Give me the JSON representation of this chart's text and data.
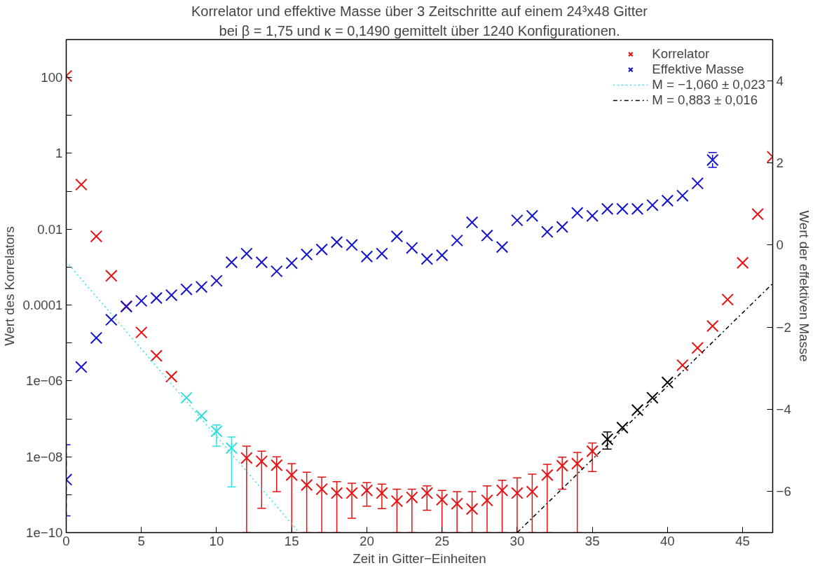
{
  "chart_data": {
    "type": "scatter",
    "title": "Korrelator und effektive Masse über 3 Zeitschritte auf einem 24³x48 Gitter",
    "subtitle": "bei β = 1,75 und κ = 0,1490 gemittelt über 1240 Konfigurationen.",
    "xlabel": "Zeit in Gitter−Einheiten",
    "ylabel": "Wert des Korrelators",
    "y2label": "Wert der effektiven Masse",
    "log": "y",
    "grid": false,
    "legend": "top right",
    "marker": "cross",
    "xlim": [
      0,
      47
    ],
    "xticks": [
      0,
      5,
      10,
      15,
      20,
      25,
      30,
      35,
      40,
      45
    ],
    "ylim": [
      1e-10,
      1000
    ],
    "yticks": [
      {
        "value": 1e-10,
        "label": "1e−10"
      },
      {
        "value": 1e-09,
        "label": null
      },
      {
        "value": 1e-08,
        "label": "1e−08"
      },
      {
        "value": 1e-07,
        "label": null
      },
      {
        "value": 1e-06,
        "label": "1e−06"
      },
      {
        "value": 1e-05,
        "label": null
      },
      {
        "value": 0.0001,
        "label": "0.0001"
      },
      {
        "value": 0.001,
        "label": null
      },
      {
        "value": 0.01,
        "label": "0.01"
      },
      {
        "value": 0.1,
        "label": null
      },
      {
        "value": 1,
        "label": "1"
      },
      {
        "value": 10,
        "label": null
      },
      {
        "value": 100,
        "label": "100"
      }
    ],
    "y2lim": [
      -7,
      5
    ],
    "y2ticks": [
      {
        "value": -6,
        "label": "−6"
      },
      {
        "value": -4,
        "label": "−4"
      },
      {
        "value": -2,
        "label": "−2"
      },
      0,
      2,
      4
    ],
    "x": [
      0,
      1,
      2,
      3,
      4,
      5,
      6,
      7,
      8,
      9,
      10,
      11,
      12,
      13,
      14,
      15,
      16,
      17,
      18,
      19,
      20,
      21,
      22,
      23,
      24,
      25,
      26,
      27,
      28,
      29,
      30,
      31,
      32,
      33,
      34,
      35,
      36,
      37,
      38,
      39,
      40,
      41,
      42,
      43,
      44,
      45,
      46,
      47
    ],
    "series": [
      {
        "name": "Korrelator",
        "color": "#e81010",
        "values": [
          110,
          0.15,
          0.0065,
          0.00059,
          9.3e-05,
          1.9e-05,
          4.6e-06,
          1.3e-06,
          3.6e-07,
          1.2e-07,
          4.7e-08,
          1.7e-08,
          9.3e-09,
          7.6e-09,
          6e-09,
          3.3e-09,
          1.8e-09,
          1.4e-09,
          1.1e-09,
          1.1e-09,
          1.3e-09,
          1.1e-09,
          6.8e-10,
          8.5e-10,
          1.1e-09,
          7.4e-10,
          5.8e-10,
          4.2e-10,
          7.1e-10,
          1.3e-09,
          1.1e-09,
          1.2e-09,
          3.3e-09,
          5.8e-09,
          6.6e-09,
          1.4e-08,
          2.9e-08,
          5.9e-08,
          1.7e-07,
          3.6e-07,
          9.1e-07,
          2.6e-06,
          7.4e-06,
          2.8e-05,
          0.00014,
          0.0013,
          0.025,
          0.81
        ],
        "colors": [
          "#e81010",
          "#e81010",
          "#e81010",
          "#e81010",
          "#e81010",
          "#e81010",
          "#e81010",
          "#e81010",
          "#33dede",
          "#33dede",
          "#33dede",
          "#33dede",
          "#e81010",
          "#e81010",
          "#e81010",
          "#e81010",
          "#e81010",
          "#e81010",
          "#e81010",
          "#e81010",
          "#e81010",
          "#e81010",
          "#e81010",
          "#e81010",
          "#e81010",
          "#e81010",
          "#e81010",
          "#e81010",
          "#e81010",
          "#e81010",
          "#e81010",
          "#e81010",
          "#e81010",
          "#e81010",
          "#e81010",
          "#e81010",
          "#000000",
          "#000000",
          "#000000",
          "#000000",
          "#000000",
          "#e81010",
          "#e81010",
          "#e81010",
          "#e81010",
          "#e81010",
          "#e81010",
          "#e81010"
        ],
        "errors": [
          null,
          null,
          null,
          null,
          null,
          null,
          null,
          null,
          null,
          null,
          [
            1.9e-08,
            6.9e-08
          ],
          [
            1.6e-09,
            3.3e-08
          ],
          [
            1e-10,
            1.9e-08
          ],
          [
            4.4e-10,
            1.4e-08
          ],
          [
            1.2e-09,
            1e-08
          ],
          [
            1e-10,
            6.6e-09
          ],
          [
            1e-10,
            3.9e-09
          ],
          [
            1e-10,
            2.9e-09
          ],
          [
            1e-10,
            2.2e-09
          ],
          [
            2.4e-10,
            2e-09
          ],
          [
            5e-10,
            2.1e-09
          ],
          [
            4.3e-10,
            1.9e-09
          ],
          [
            1e-10,
            1.4e-09
          ],
          [
            1e-10,
            1.4e-09
          ],
          [
            3.9e-10,
            1.7e-09
          ],
          [
            1e-10,
            1.3e-09
          ],
          [
            1e-10,
            1.2e-09
          ],
          [
            1e-10,
            1.2e-09
          ],
          [
            1e-10,
            1.7e-09
          ],
          [
            1e-10,
            2.4e-09
          ],
          [
            1e-10,
            2.8e-09
          ],
          [
            1e-10,
            3.5e-09
          ],
          [
            1e-10,
            6.3e-09
          ],
          [
            1.4e-09,
            9.8e-09
          ],
          [
            1e-10,
            1.3e-08
          ],
          [
            4.1e-09,
            2.3e-08
          ],
          [
            1.6e-08,
            4.5e-08
          ],
          null,
          null,
          null,
          null,
          null,
          null,
          null,
          null,
          null,
          null,
          null
        ]
      },
      {
        "name": "Effektive Masse",
        "axis": "y2",
        "color": "#1010d0",
        "line_style": "dashed",
        "x": [
          0,
          1,
          2,
          3,
          4,
          5,
          6,
          7,
          8,
          9,
          10,
          11,
          12,
          13,
          14,
          15,
          16,
          17,
          18,
          19,
          20,
          21,
          22,
          23,
          24,
          25,
          26,
          27,
          28,
          29,
          30,
          31,
          32,
          33,
          34,
          35,
          36,
          37,
          38,
          39,
          40,
          41,
          42,
          43
        ],
        "values": [
          -5.71,
          -2.97,
          -2.26,
          -1.82,
          -1.5,
          -1.36,
          -1.29,
          -1.22,
          -1.08,
          -1.02,
          -0.87,
          -0.42,
          -0.21,
          -0.42,
          -0.64,
          -0.44,
          -0.23,
          -0.11,
          0.07,
          0.0,
          -0.28,
          -0.21,
          0.21,
          -0.07,
          -0.34,
          -0.25,
          0.11,
          0.55,
          0.23,
          -0.05,
          0.6,
          0.71,
          0.32,
          0.44,
          0.78,
          0.71,
          0.88,
          0.88,
          0.88,
          0.97,
          1.08,
          1.2,
          1.5,
          2.07
        ],
        "errors": [
          [
            -6.59,
            -4.86
          ],
          null,
          null,
          null,
          null,
          null,
          null,
          null,
          null,
          null,
          null,
          null,
          null,
          null,
          null,
          null,
          null,
          null,
          null,
          null,
          null,
          null,
          null,
          null,
          null,
          null,
          null,
          null,
          null,
          null,
          null,
          null,
          null,
          null,
          null,
          null,
          null,
          null,
          null,
          null,
          null,
          null,
          null,
          0.18
        ]
      },
      {
        "name": "M = −1,060 ± 0,023",
        "type": "line",
        "marker": "none",
        "color": "#33dede",
        "line_style": "dotted",
        "x": [
          0,
          15.5
        ],
        "values": [
          0.0014,
          1e-10
        ]
      },
      {
        "name": "M = 0,883 ± 0,016",
        "type": "line",
        "marker": "none",
        "color": "#000000",
        "line_style": "dashdot",
        "x": [
          30,
          47
        ],
        "values": [
          1e-10,
          0.00037
        ]
      }
    ]
  }
}
